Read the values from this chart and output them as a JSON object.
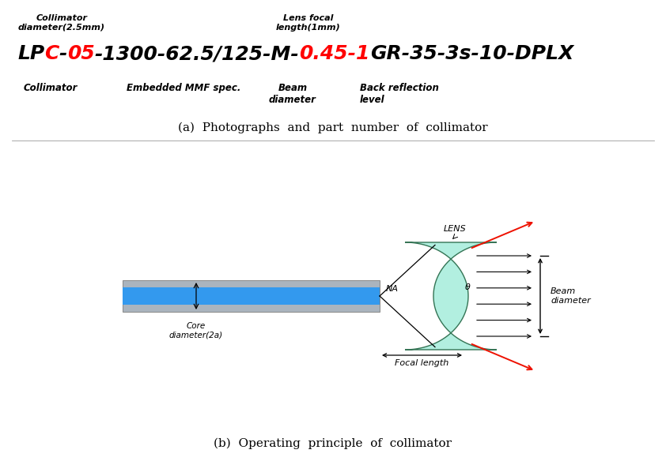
{
  "fig_width": 8.42,
  "fig_height": 6.03,
  "bg_color": "#ffffff",
  "panel_a_caption": "(a)  Photographs  and  part  number  of  collimator",
  "panel_b_caption": "(b)  Operating  principle  of  collimator",
  "label_collimator_diam": "Collimator\ndiameter(2.5mm)",
  "label_lens_focal": "Lens focal\nlength(1mm)",
  "label_collimator": "Collimator",
  "label_embedded": "Embedded MMF spec.",
  "label_beam_diam": "Beam\ndiameter",
  "label_back_refl": "Back reflection\nlevel",
  "label_core_diam": "Core\ndiameter(2a)",
  "label_focal_length": "Focal length",
  "label_beam_diameter": "Beam\ndiameter",
  "label_na": "NA",
  "label_lens": "LENS",
  "fiber_color_outer": "#aab4be",
  "fiber_color_inner": "#3399ee",
  "lens_color": "#aaeedd",
  "red_ray_color": "#ee1100",
  "segments": [
    [
      "LP",
      "black"
    ],
    [
      "C",
      "red"
    ],
    [
      "-",
      "black"
    ],
    [
      "05",
      "red"
    ],
    [
      "-1300-62.5/125-M-",
      "black"
    ],
    [
      "0.45-1",
      "red"
    ],
    [
      "GR-35-3s-10-DPLX",
      "black"
    ]
  ]
}
